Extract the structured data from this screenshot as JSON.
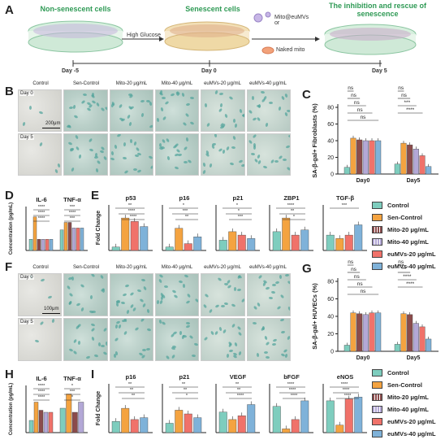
{
  "panels": {
    "A": "A",
    "B": "B",
    "C": "C",
    "D": "D",
    "E": "E",
    "F": "F",
    "G": "G",
    "H": "H",
    "I": "I"
  },
  "schematic": {
    "stage1": "Non-senescent cells",
    "stage2": "Senescent cells",
    "stage3": "The inhibition and rescue of senescence",
    "arrow1": "High Glucose",
    "legend1": "Mito@euMVs",
    "legend_or": "or",
    "legend2": "Naked mito",
    "days": [
      "Day -5",
      "Day 0",
      "Day 5"
    ]
  },
  "image_grid_columns": [
    "Control",
    "Sen-Control",
    "Mito-20 μg/mL",
    "Mito-40 μg/mL",
    "euMVs-20 μg/mL",
    "euMVs-40 μg/mL"
  ],
  "image_grid_rows": [
    "Day 0",
    "Day 5"
  ],
  "scale_B": "200μm",
  "scale_F": "100μm",
  "legend": {
    "items": [
      "Control",
      "Sen-Control",
      "Mito-20 μg/mL",
      "Mito-40 μg/mL",
      "euMVs-20 μg/mL",
      "euMVs-40 μg/mL"
    ],
    "colors": [
      "#7ecdbe",
      "#f4a340",
      "#8b4b4b",
      "#b3a8d6",
      "#f0726a",
      "#7fb2d9"
    ]
  },
  "chart_data": [
    {
      "panel": "C",
      "type": "bar",
      "ylabel": "SA-β-gal+ Fibroblasts (%)",
      "categories": [
        "Day0",
        "Day5"
      ],
      "ylim": [
        0,
        80
      ],
      "yticks": [
        0,
        20,
        40,
        60,
        80
      ],
      "series_values": [
        [
          8,
          43,
          41,
          40,
          40,
          40
        ],
        [
          12,
          37,
          35,
          30,
          22,
          9
        ]
      ],
      "sig": [
        [
          "ns",
          "ns",
          "ns",
          "ns",
          "ns"
        ],
        [
          "ns",
          "ns",
          "***",
          "****"
        ]
      ]
    },
    {
      "panel": "G",
      "type": "bar",
      "ylabel": "SA-β-gal+ HUVECs (%)",
      "categories": [
        "Day0",
        "Day5"
      ],
      "ylim": [
        0,
        80
      ],
      "yticks": [
        0,
        20,
        40,
        60,
        80
      ],
      "series_values": [
        [
          7,
          44,
          43,
          42,
          44,
          44
        ],
        [
          8,
          43,
          42,
          32,
          28,
          14
        ]
      ],
      "sig": [
        [
          "ns",
          "ns",
          "ns",
          "ns",
          "ns"
        ],
        [
          "ns",
          "**",
          "****",
          "****"
        ]
      ]
    },
    {
      "panel": "D",
      "type": "bar",
      "ylabel": "Concentration (pg/mL)",
      "groups": [
        "IL-6",
        "TNF-α"
      ],
      "series_values": [
        [
          0.3,
          0.9,
          0.3,
          0.3,
          0.3,
          0.3
        ],
        [
          0.55,
          0.75,
          0.75,
          0.6,
          0.6,
          0.6
        ]
      ],
      "sig_labels": [
        "****",
        "****",
        "****",
        "***",
        "****",
        "***"
      ]
    },
    {
      "panel": "E",
      "type": "bar",
      "ylabel": "Fold Change",
      "groups": [
        "p53",
        "p16",
        "p21",
        "ZBP1",
        "TGF-β"
      ],
      "series_values": [
        [
          0.1,
          0.95,
          0.85,
          0.7
        ],
        [
          0.1,
          0.65,
          0.2,
          0.4
        ],
        [
          0.3,
          0.55,
          0.45,
          0.35
        ],
        [
          0.55,
          0.95,
          0.45,
          0.6
        ],
        [
          0.45,
          0.35,
          0.45,
          0.75
        ]
      ],
      "sig_labels": [
        "**",
        "****",
        "****",
        "*",
        "***",
        "**",
        "*",
        "*",
        "***",
        "****",
        "**",
        "*",
        "***"
      ]
    },
    {
      "panel": "H",
      "type": "bar",
      "ylabel": "Concentration (pg/mL)",
      "groups": [
        "IL-6",
        "TNF-α"
      ],
      "series_values": [
        [
          0.3,
          0.75,
          0.55,
          0.5,
          0.5
        ],
        [
          0.6,
          0.95,
          0.5,
          0.75
        ]
      ],
      "sig_labels": [
        "****",
        "****",
        "****",
        "*",
        "***",
        "*"
      ]
    },
    {
      "panel": "I",
      "type": "bar",
      "ylabel": "Fold Change",
      "groups": [
        "p16",
        "p21",
        "VEGF",
        "bFGF",
        "eNOS"
      ],
      "series_values": [
        [
          0.3,
          0.65,
          0.35,
          0.4
        ],
        [
          0.25,
          0.6,
          0.5,
          0.4
        ],
        [
          0.55,
          0.35,
          0.45,
          0.75
        ],
        [
          0.7,
          0.1,
          0.35,
          0.85
        ],
        [
          0.85,
          0.2,
          0.9,
          0.95
        ]
      ],
      "sig_labels": [
        "**",
        "**",
        "**",
        "**",
        "**",
        "*",
        "**",
        "**",
        "****",
        "****",
        "****",
        "****",
        "****",
        "****",
        "****"
      ]
    }
  ]
}
